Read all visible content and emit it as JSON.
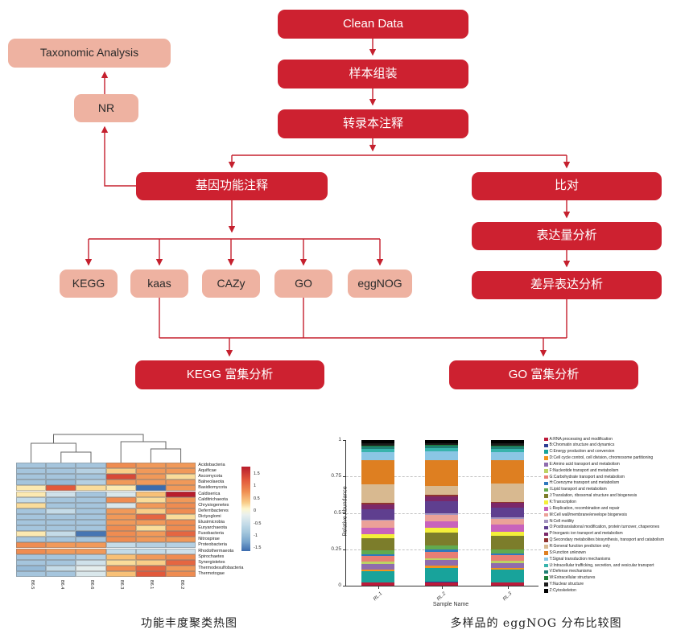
{
  "flowchart": {
    "colors": {
      "primary_box": "#cd2130",
      "secondary_box": "#eeb2a1",
      "arrow": "#c5202e"
    },
    "nodes": {
      "clean_data": "Clean Data",
      "sample_assembly": "样本组装",
      "transcript_annotation": "转录本注释",
      "taxonomic_analysis": "Taxonomic Analysis",
      "nr": "NR",
      "gene_function_annotation": "基因功能注释",
      "alignment": "比对",
      "expression_analysis": "表达量分析",
      "diff_expression_analysis": "差异表达分析",
      "kegg": "KEGG",
      "kaas": "kaas",
      "cazy": "CAZy",
      "go": "GO",
      "eggnog": "eggNOG",
      "kegg_enrichment": "KEGG 富集分析",
      "go_enrichment": "GO 富集分析"
    }
  },
  "chart_data": [
    {
      "type": "heatmap",
      "caption": "功能丰度聚类热图",
      "columns": [
        "B6.5",
        "B6.4",
        "B6.6",
        "B6.3",
        "B6.1",
        "B6.2"
      ],
      "column_dendrogram": "((B6.5,(B6.4,B6.6)),(B6.3,(B6.1,B6.2)))",
      "rows": [
        "Acidobacteria",
        "Aquificae",
        "Ascomycota",
        "Balneolaeota",
        "Basidiomycota",
        "Caldiserica",
        "Calditrichaeota",
        "Chrysiogenetes",
        "Deferribacteres",
        "Dictyoglomi",
        "Elusimicrobia",
        "Euryarchaeota",
        "Fusobacteria",
        "Nitrospirae",
        "Proteobacteria",
        "Rhodothermaeota",
        "Spirochaetes",
        "Synergistetes",
        "Thermodesulfobacteria",
        "Thermotogae"
      ],
      "values": [
        [
          -0.7,
          -0.7,
          -0.7,
          0.8,
          0.7,
          0.7
        ],
        [
          -0.7,
          -0.7,
          -0.6,
          0.3,
          0.7,
          0.7
        ],
        [
          -0.7,
          -0.7,
          -0.7,
          1.3,
          0.7,
          0.2
        ],
        [
          -0.7,
          -0.8,
          -0.6,
          0.7,
          0.7,
          0.7
        ],
        [
          0.1,
          1.2,
          0.2,
          0.1,
          -1.6,
          0.7
        ],
        [
          0.1,
          -0.4,
          -0.7,
          -0.3,
          0.4,
          1.6
        ],
        [
          -0.5,
          -0.7,
          -0.7,
          0.8,
          0.2,
          0.7
        ],
        [
          0.2,
          -0.7,
          -0.7,
          -0.3,
          0.7,
          0.8
        ],
        [
          -0.7,
          -0.5,
          -0.7,
          0.7,
          0.3,
          0.8
        ],
        [
          -0.7,
          -0.7,
          -0.7,
          0.7,
          1.1,
          0.2
        ],
        [
          -0.7,
          -0.7,
          -0.7,
          0.7,
          0.7,
          0.8
        ],
        [
          -0.7,
          -0.7,
          -0.7,
          0.8,
          0.2,
          0.8
        ],
        [
          0.1,
          -0.5,
          -1.5,
          0.8,
          0.7,
          1.1
        ],
        [
          -0.7,
          -0.7,
          -0.7,
          0.8,
          0.7,
          0.7
        ],
        [
          0.8,
          0.7,
          0.7,
          -0.5,
          -0.6,
          -0.6
        ],
        [
          0.8,
          0.7,
          0.7,
          -0.5,
          -0.5,
          -0.4
        ],
        [
          -0.7,
          -0.7,
          -0.6,
          0.4,
          0.7,
          0.8
        ],
        [
          -0.7,
          -0.7,
          -0.4,
          0.2,
          0.3,
          1.1
        ],
        [
          -0.8,
          -0.5,
          -0.2,
          0.8,
          1.1,
          0.7
        ],
        [
          -0.7,
          -0.7,
          -0.3,
          0.4,
          1.2,
          0.8
        ]
      ],
      "colorbar_ticks": [
        "1.5",
        "1",
        "0.5",
        "0",
        "-0.5",
        "-1",
        "-1.5"
      ],
      "value_range": [
        -1.6,
        1.6
      ],
      "colormap": "blue(low)-yellow(mid)-red(high)"
    },
    {
      "type": "bar",
      "stacked": true,
      "caption": "多样品的 eggNOG 分布比较图",
      "xlabel": "Sample Name",
      "ylabel": "Relative Abundance",
      "ylim": [
        0,
        1
      ],
      "yticks": [
        "0",
        "0.25",
        "0.5",
        "0.75",
        "1"
      ],
      "grid": "dashed horizontal at 0.25 / 0.5 / 0.75",
      "categories": [
        "RL.1",
        "RL.2",
        "RL.3"
      ],
      "legend_position": "right",
      "legend": [
        {
          "code": "A",
          "label": "RNA processing and modification",
          "color": "#bc1a3a"
        },
        {
          "code": "B",
          "label": "Chromatin structure and dynamics",
          "color": "#2c3e94"
        },
        {
          "code": "C",
          "label": "Energy production and conversion",
          "color": "#18a39b"
        },
        {
          "code": "D",
          "label": "Cell cycle control, cell division, chromosome partitioning",
          "color": "#f1941e"
        },
        {
          "code": "E",
          "label": "Amino acid transport and metabolism",
          "color": "#8f6cad"
        },
        {
          "code": "F",
          "label": "Nucleotide transport and metabolism",
          "color": "#bcd264"
        },
        {
          "code": "G",
          "label": "Carbohydrate transport and metabolism",
          "color": "#e87e74"
        },
        {
          "code": "H",
          "label": "Coenzyme transport and metabolism",
          "color": "#2f78bd"
        },
        {
          "code": "I",
          "label": "Lipid transport and metabolism",
          "color": "#62aa4e"
        },
        {
          "code": "J",
          "label": "Translation, ribosomal structure and biogenesis",
          "color": "#7c7d2b"
        },
        {
          "code": "K",
          "label": "Transcription",
          "color": "#f4ef3a"
        },
        {
          "code": "L",
          "label": "Replication, recombination and repair",
          "color": "#c862bc"
        },
        {
          "code": "M",
          "label": "Cell wall/membrane/envelope biogenesis",
          "color": "#eba198"
        },
        {
          "code": "N",
          "label": "Cell motility",
          "color": "#a393bf"
        },
        {
          "code": "O",
          "label": "Posttranslational modification, protein turnover, chaperones",
          "color": "#5f3f8f"
        },
        {
          "code": "P",
          "label": "Inorganic ion transport and metabolism",
          "color": "#7b2869"
        },
        {
          "code": "Q",
          "label": "Secondary metabolites biosynthesis, transport and catabolism",
          "color": "#8f3330"
        },
        {
          "code": "R",
          "label": "General function prediction only",
          "color": "#d8b990"
        },
        {
          "code": "S",
          "label": "Function unknown",
          "color": "#de7f21"
        },
        {
          "code": "T",
          "label": "Signal transduction mechanisms",
          "color": "#8ac6e4"
        },
        {
          "code": "U",
          "label": "Intracellular trafficking, secretion, and vesicular transport",
          "color": "#37b3ac"
        },
        {
          "code": "V",
          "label": "Defense mechanisms",
          "color": "#1f7f74"
        },
        {
          "code": "W",
          "label": "Extracellular structures",
          "color": "#1e7c36"
        },
        {
          "code": "Y",
          "label": "Nuclear structure",
          "color": "#1c1c1c"
        },
        {
          "code": "Z",
          "label": "Cytoskeleton",
          "color": "#000000"
        }
      ],
      "series": [
        {
          "name": "RL.1",
          "values": [
            0.02,
            0.0,
            0.075,
            0.013,
            0.038,
            0.012,
            0.038,
            0.014,
            0.024,
            0.08,
            0.027,
            0.046,
            0.044,
            0.01,
            0.066,
            0.034,
            0.01,
            0.125,
            0.16,
            0.05,
            0.022,
            0.018,
            0.006,
            0.014,
            0.022
          ]
        },
        {
          "name": "RL.2",
          "values": [
            0.018,
            0.006,
            0.09,
            0.012,
            0.036,
            0.01,
            0.04,
            0.016,
            0.028,
            0.078,
            0.03,
            0.042,
            0.04,
            0.012,
            0.078,
            0.03,
            0.008,
            0.058,
            0.16,
            0.055,
            0.02,
            0.016,
            0.005,
            0.012,
            0.02
          ]
        },
        {
          "name": "RL.3",
          "values": [
            0.022,
            0.0,
            0.08,
            0.012,
            0.034,
            0.012,
            0.036,
            0.014,
            0.026,
            0.085,
            0.028,
            0.044,
            0.04,
            0.01,
            0.06,
            0.03,
            0.01,
            0.115,
            0.155,
            0.048,
            0.024,
            0.016,
            0.006,
            0.014,
            0.02
          ]
        }
      ]
    }
  ]
}
